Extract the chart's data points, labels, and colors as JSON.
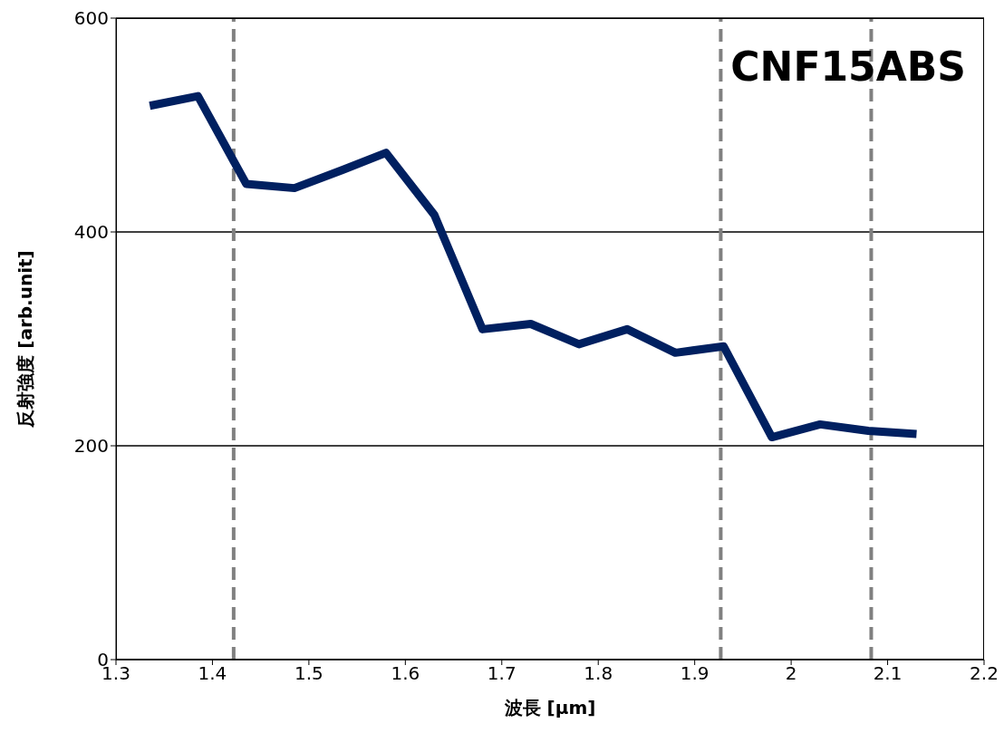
{
  "chart_data": {
    "type": "line",
    "xlabel": "波長 [μm]",
    "ylabel": "反射強度 [arb.unit]",
    "annotations": [
      "CNF15ABS"
    ],
    "x": [
      1.335,
      1.385,
      1.435,
      1.485,
      1.535,
      1.58,
      1.63,
      1.68,
      1.73,
      1.78,
      1.83,
      1.88,
      1.93,
      1.98,
      2.03,
      2.08,
      2.13
    ],
    "series": [
      {
        "color": "#002060",
        "values": [
          518,
          527,
          445,
          441,
          458,
          474,
          416,
          309,
          314,
          295,
          309,
          287,
          293,
          208,
          220,
          214,
          211
        ]
      }
    ],
    "xlim": [
      1.3,
      2.2
    ],
    "xticks": [
      1.3,
      1.4,
      1.5,
      1.6,
      1.7,
      1.8,
      1.9,
      2,
      2.1,
      2.2
    ],
    "ylim": [
      0,
      600
    ],
    "yticks": [
      0,
      200,
      400,
      600
    ],
    "grid": "y",
    "legend": false,
    "marker": "none",
    "line_style": "solid",
    "ref_lines": [
      {
        "axis": "x",
        "value": 1.422,
        "color": "#808080",
        "line_style": "dashed"
      },
      {
        "axis": "x",
        "value": 1.927,
        "color": "#808080",
        "line_style": "dashed"
      },
      {
        "axis": "x",
        "value": 2.083,
        "color": "#808080",
        "line_style": "dashed"
      }
    ]
  }
}
